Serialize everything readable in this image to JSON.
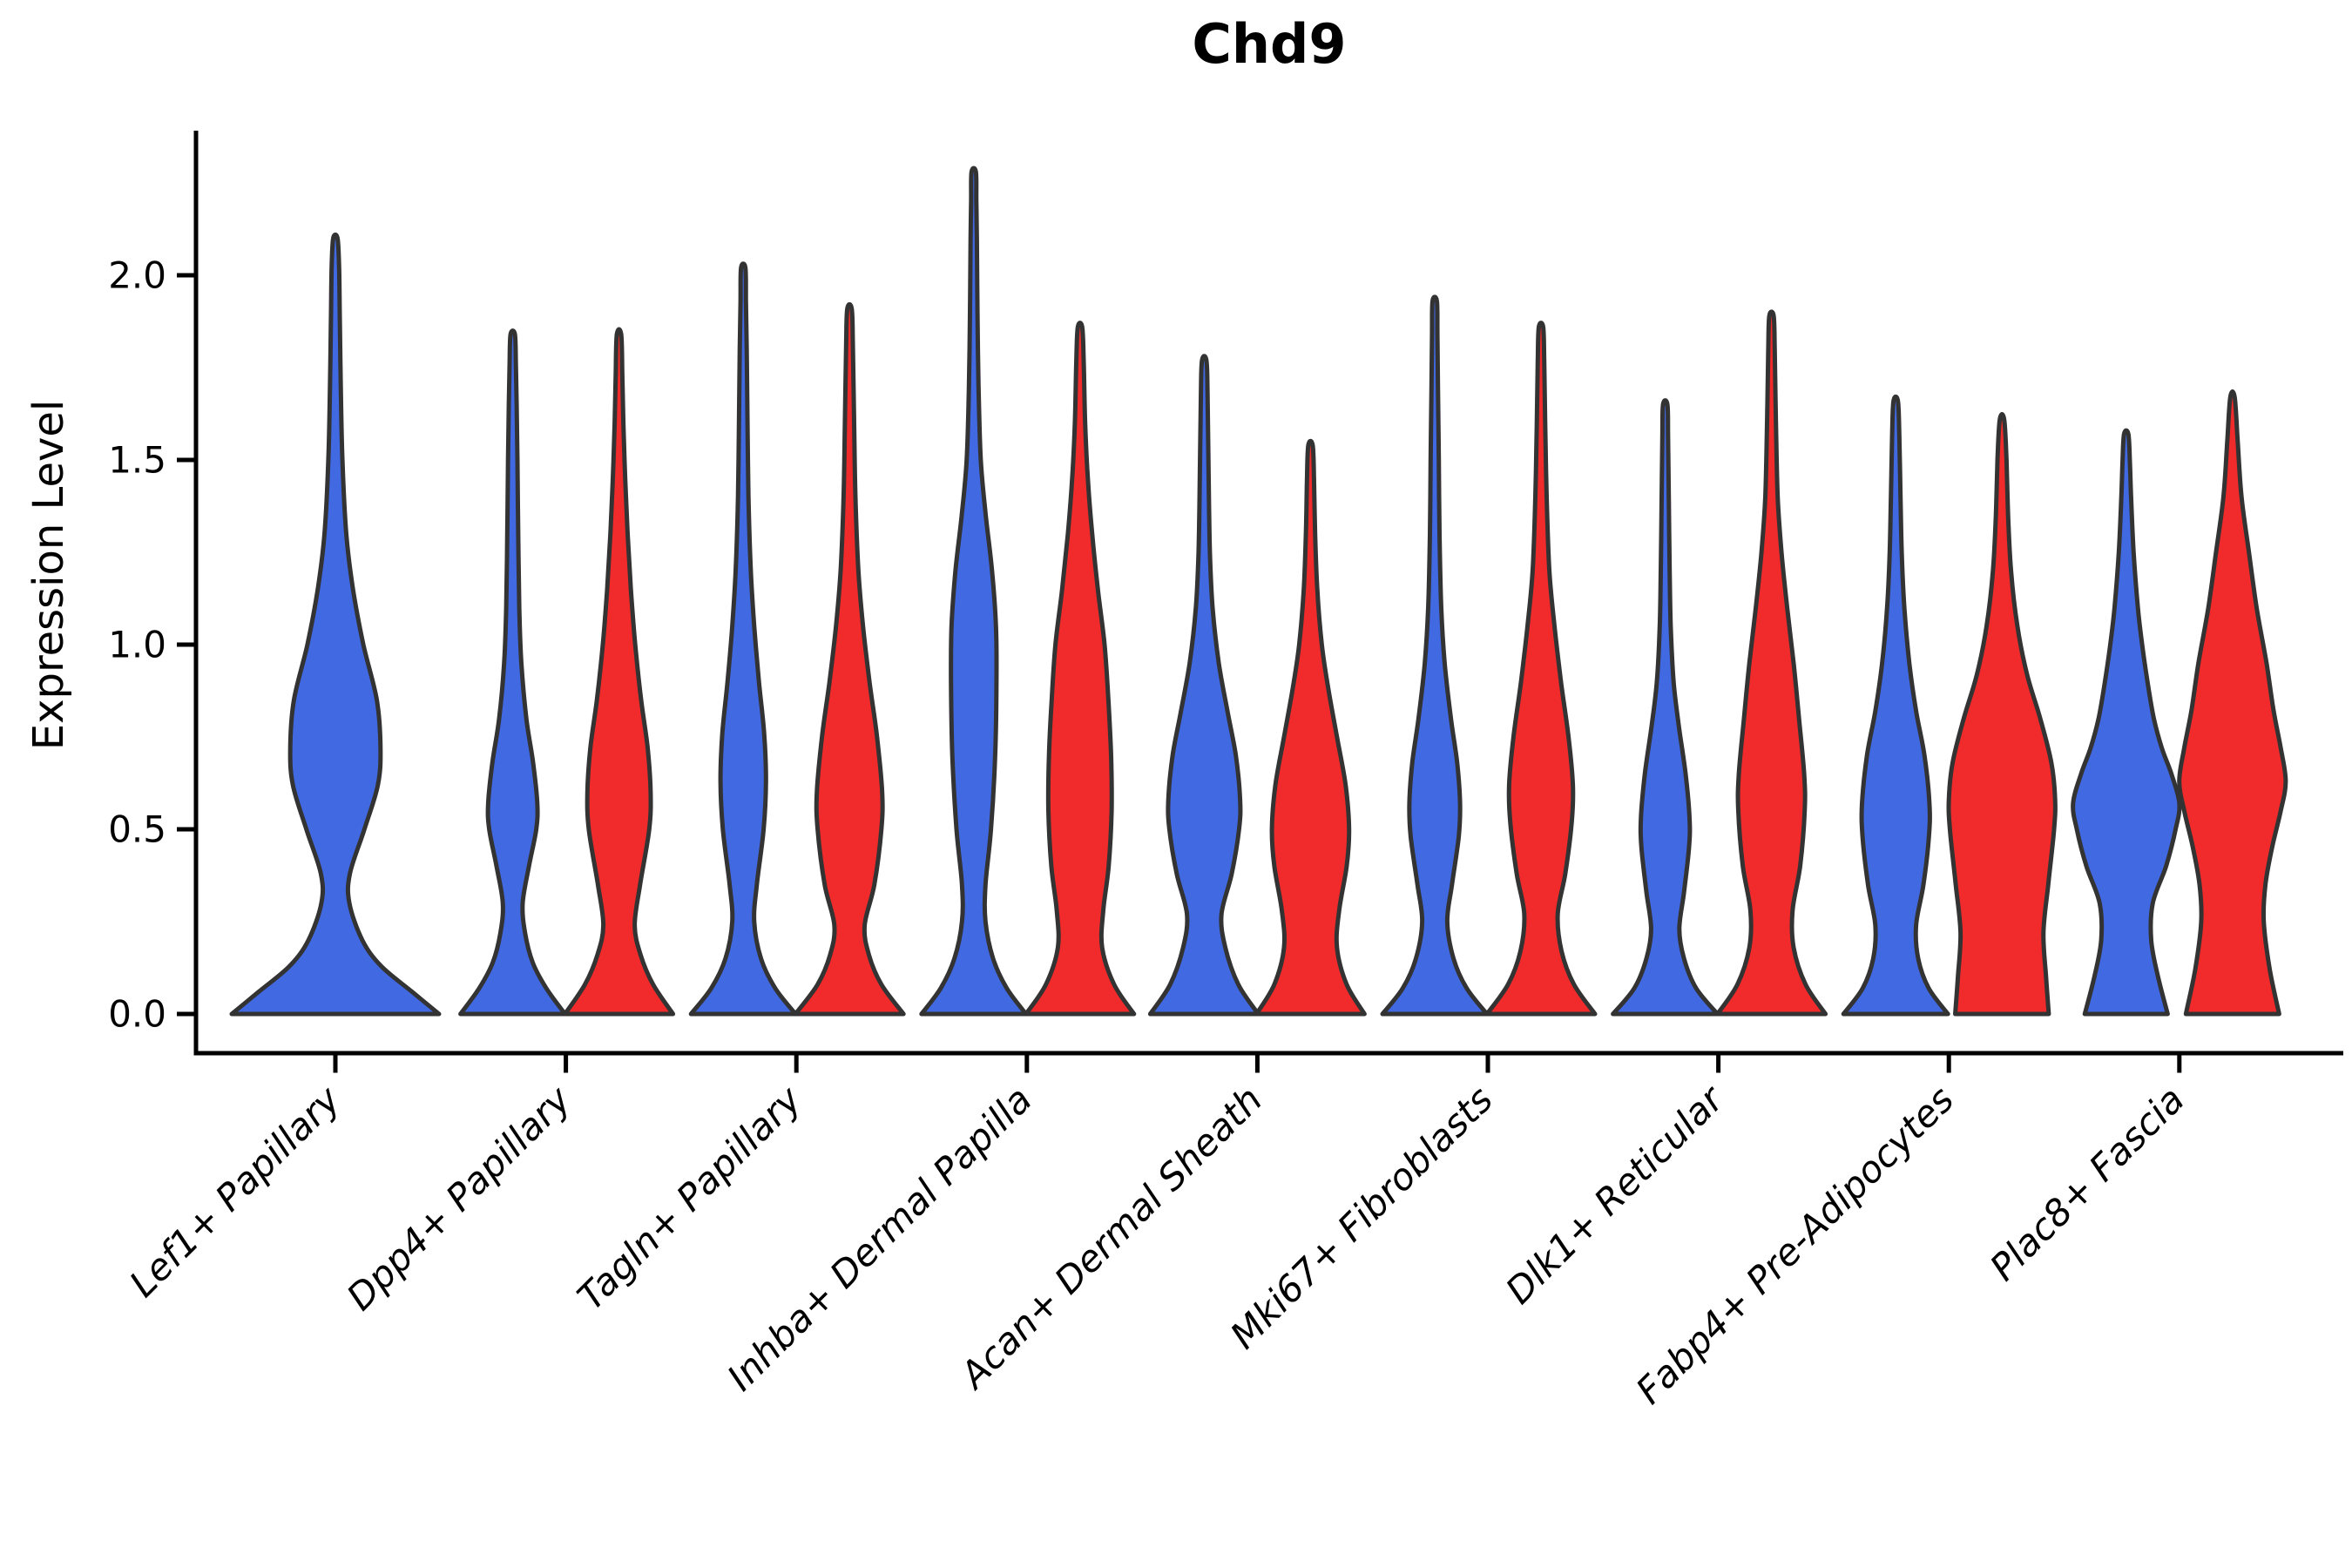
{
  "title": "Chd9",
  "ylabel": "Expression Level",
  "chart_data": {
    "type": "violin",
    "title": "Chd9",
    "xlabel": "",
    "ylabel": "Expression Level",
    "legend": "none",
    "grid": false,
    "ylim": [
      -0.11,
      2.38
    ],
    "yticks": [
      {
        "label": "0.0",
        "value": 0.0
      },
      {
        "label": "0.5",
        "value": 0.5
      },
      {
        "label": "1.0",
        "value": 1.0
      },
      {
        "label": "1.5",
        "value": 1.5
      },
      {
        "label": "2.0",
        "value": 2.0
      }
    ],
    "categories": [
      "Lef1+ Papillary",
      "Dpp4+ Papillary",
      "Tagln+ Papillary",
      "Inhba+ Dermal Papilla",
      "Acan+ Dermal Sheath",
      "Mki67+ Fibroblasts",
      "Dlk1+ Reticular",
      "Fabp4+ Pre-Adipocytes",
      "Plac8+ Fascia"
    ],
    "xtick_label_style": {
      "rotation_deg": 45,
      "italic": true
    },
    "colors": {
      "blue": "#4169E1",
      "red": "#F12B2B",
      "edge": "#333333",
      "axis": "#000000"
    },
    "split": [
      "blue",
      "red"
    ],
    "violins": [
      {
        "category": "Lef1+ Papillary",
        "group": 0,
        "side": "center",
        "color": "blue",
        "tip": 2.1,
        "halfwidth": 119,
        "profile": [
          [
            0,
            1.0
          ],
          [
            0.06,
            0.74
          ],
          [
            0.13,
            0.44
          ],
          [
            0.2,
            0.26
          ],
          [
            0.3,
            0.135
          ],
          [
            0.38,
            0.14
          ],
          [
            0.5,
            0.28
          ],
          [
            0.62,
            0.41
          ],
          [
            0.72,
            0.435
          ],
          [
            0.85,
            0.4
          ],
          [
            1.0,
            0.27
          ],
          [
            1.15,
            0.17
          ],
          [
            1.3,
            0.105
          ],
          [
            1.5,
            0.068
          ],
          [
            1.7,
            0.052
          ],
          [
            1.9,
            0.042
          ],
          [
            2.02,
            0.036
          ]
        ]
      },
      {
        "category": "Dpp4+ Papillary",
        "group": 1,
        "side": "left",
        "color": "blue",
        "tip": 1.84,
        "halfwidth": 60,
        "profile": [
          [
            0,
            1.0
          ],
          [
            0.07,
            0.64
          ],
          [
            0.14,
            0.38
          ],
          [
            0.22,
            0.235
          ],
          [
            0.3,
            0.19
          ],
          [
            0.4,
            0.31
          ],
          [
            0.5,
            0.45
          ],
          [
            0.57,
            0.47
          ],
          [
            0.68,
            0.39
          ],
          [
            0.8,
            0.26
          ],
          [
            0.95,
            0.165
          ],
          [
            1.1,
            0.125
          ],
          [
            1.3,
            0.105
          ],
          [
            1.5,
            0.09
          ],
          [
            1.65,
            0.075
          ],
          [
            1.76,
            0.06
          ]
        ]
      },
      {
        "category": "Dpp4+ Papillary",
        "group": 1,
        "side": "right",
        "color": "red",
        "tip": 1.84,
        "halfwidth": 62,
        "profile": [
          [
            0,
            1.0
          ],
          [
            0.08,
            0.63
          ],
          [
            0.16,
            0.4
          ],
          [
            0.24,
            0.29
          ],
          [
            0.35,
            0.39
          ],
          [
            0.5,
            0.56
          ],
          [
            0.6,
            0.585
          ],
          [
            0.72,
            0.53
          ],
          [
            0.85,
            0.41
          ],
          [
            1.0,
            0.3
          ],
          [
            1.15,
            0.22
          ],
          [
            1.3,
            0.16
          ],
          [
            1.45,
            0.115
          ],
          [
            1.6,
            0.08
          ],
          [
            1.73,
            0.062
          ]
        ]
      },
      {
        "category": "Tagln+ Papillary",
        "group": 2,
        "side": "left",
        "color": "blue",
        "tip": 2.02,
        "halfwidth": 60,
        "profile": [
          [
            0,
            1.0
          ],
          [
            0.07,
            0.61
          ],
          [
            0.15,
            0.34
          ],
          [
            0.25,
            0.21
          ],
          [
            0.35,
            0.26
          ],
          [
            0.5,
            0.39
          ],
          [
            0.63,
            0.435
          ],
          [
            0.76,
            0.4
          ],
          [
            0.9,
            0.3
          ],
          [
            1.05,
            0.21
          ],
          [
            1.2,
            0.145
          ],
          [
            1.4,
            0.1
          ],
          [
            1.6,
            0.082
          ],
          [
            1.8,
            0.066
          ],
          [
            1.93,
            0.052
          ]
        ]
      },
      {
        "category": "Tagln+ Papillary",
        "group": 2,
        "side": "right",
        "color": "red",
        "tip": 1.91,
        "halfwidth": 62,
        "profile": [
          [
            0,
            1.0
          ],
          [
            0.08,
            0.59
          ],
          [
            0.16,
            0.36
          ],
          [
            0.24,
            0.28
          ],
          [
            0.35,
            0.46
          ],
          [
            0.5,
            0.59
          ],
          [
            0.6,
            0.605
          ],
          [
            0.75,
            0.51
          ],
          [
            0.9,
            0.37
          ],
          [
            1.05,
            0.25
          ],
          [
            1.2,
            0.165
          ],
          [
            1.4,
            0.11
          ],
          [
            1.6,
            0.085
          ],
          [
            1.82,
            0.062
          ]
        ]
      },
      {
        "category": "Inhba+ Dermal Papilla",
        "group": 3,
        "side": "left",
        "color": "blue",
        "tip": 2.28,
        "halfwidth": 60,
        "profile": [
          [
            0,
            1.0
          ],
          [
            0.07,
            0.63
          ],
          [
            0.15,
            0.37
          ],
          [
            0.25,
            0.225
          ],
          [
            0.35,
            0.225
          ],
          [
            0.5,
            0.33
          ],
          [
            0.7,
            0.41
          ],
          [
            0.9,
            0.435
          ],
          [
            1.05,
            0.425
          ],
          [
            1.2,
            0.35
          ],
          [
            1.35,
            0.23
          ],
          [
            1.5,
            0.135
          ],
          [
            1.7,
            0.092
          ],
          [
            1.9,
            0.072
          ],
          [
            2.1,
            0.06
          ],
          [
            2.2,
            0.05
          ]
        ]
      },
      {
        "category": "Inhba+ Dermal Papilla",
        "group": 3,
        "side": "right",
        "color": "red",
        "tip": 1.86,
        "halfwidth": 62,
        "profile": [
          [
            0,
            1.0
          ],
          [
            0.08,
            0.63
          ],
          [
            0.18,
            0.41
          ],
          [
            0.28,
            0.43
          ],
          [
            0.4,
            0.53
          ],
          [
            0.55,
            0.585
          ],
          [
            0.7,
            0.575
          ],
          [
            0.85,
            0.525
          ],
          [
            1.0,
            0.455
          ],
          [
            1.15,
            0.33
          ],
          [
            1.3,
            0.225
          ],
          [
            1.45,
            0.145
          ],
          [
            1.6,
            0.095
          ],
          [
            1.77,
            0.068
          ]
        ]
      },
      {
        "category": "Acan+ Dermal Sheath",
        "group": 4,
        "side": "left",
        "color": "blue",
        "tip": 1.77,
        "halfwidth": 62,
        "profile": [
          [
            0,
            1.0
          ],
          [
            0.08,
            0.63
          ],
          [
            0.18,
            0.39
          ],
          [
            0.27,
            0.32
          ],
          [
            0.38,
            0.51
          ],
          [
            0.5,
            0.645
          ],
          [
            0.58,
            0.665
          ],
          [
            0.7,
            0.585
          ],
          [
            0.82,
            0.43
          ],
          [
            0.95,
            0.27
          ],
          [
            1.1,
            0.155
          ],
          [
            1.25,
            0.105
          ],
          [
            1.45,
            0.082
          ],
          [
            1.68,
            0.062
          ]
        ]
      },
      {
        "category": "Acan+ Dermal Sheath",
        "group": 4,
        "side": "right",
        "color": "red",
        "tip": 1.54,
        "halfwidth": 62,
        "profile": [
          [
            0,
            1.0
          ],
          [
            0.08,
            0.67
          ],
          [
            0.18,
            0.49
          ],
          [
            0.28,
            0.53
          ],
          [
            0.4,
            0.67
          ],
          [
            0.5,
            0.715
          ],
          [
            0.62,
            0.65
          ],
          [
            0.75,
            0.49
          ],
          [
            0.88,
            0.33
          ],
          [
            1.0,
            0.21
          ],
          [
            1.15,
            0.125
          ],
          [
            1.3,
            0.085
          ],
          [
            1.45,
            0.065
          ]
        ]
      },
      {
        "category": "Mki67+ Fibroblasts",
        "group": 5,
        "side": "left",
        "color": "blue",
        "tip": 1.93,
        "halfwidth": 60,
        "profile": [
          [
            0,
            1.0
          ],
          [
            0.07,
            0.61
          ],
          [
            0.15,
            0.36
          ],
          [
            0.25,
            0.24
          ],
          [
            0.35,
            0.33
          ],
          [
            0.48,
            0.46
          ],
          [
            0.57,
            0.485
          ],
          [
            0.68,
            0.43
          ],
          [
            0.8,
            0.31
          ],
          [
            0.95,
            0.19
          ],
          [
            1.1,
            0.125
          ],
          [
            1.3,
            0.092
          ],
          [
            1.5,
            0.078
          ],
          [
            1.7,
            0.062
          ],
          [
            1.84,
            0.052
          ]
        ]
      },
      {
        "category": "Mki67+ Fibroblasts",
        "group": 5,
        "side": "right",
        "color": "red",
        "tip": 1.86,
        "halfwidth": 62,
        "profile": [
          [
            0,
            1.0
          ],
          [
            0.08,
            0.61
          ],
          [
            0.17,
            0.38
          ],
          [
            0.27,
            0.31
          ],
          [
            0.38,
            0.45
          ],
          [
            0.52,
            0.57
          ],
          [
            0.62,
            0.59
          ],
          [
            0.75,
            0.51
          ],
          [
            0.9,
            0.37
          ],
          [
            1.05,
            0.25
          ],
          [
            1.2,
            0.155
          ],
          [
            1.4,
            0.105
          ],
          [
            1.6,
            0.078
          ],
          [
            1.77,
            0.06
          ]
        ]
      },
      {
        "category": "Dlk1+ Reticular",
        "group": 6,
        "side": "left",
        "color": "blue",
        "tip": 1.65,
        "halfwidth": 60,
        "profile": [
          [
            0,
            1.0
          ],
          [
            0.07,
            0.59
          ],
          [
            0.15,
            0.36
          ],
          [
            0.23,
            0.27
          ],
          [
            0.33,
            0.36
          ],
          [
            0.45,
            0.455
          ],
          [
            0.53,
            0.465
          ],
          [
            0.65,
            0.39
          ],
          [
            0.78,
            0.26
          ],
          [
            0.9,
            0.16
          ],
          [
            1.05,
            0.105
          ],
          [
            1.2,
            0.085
          ],
          [
            1.4,
            0.068
          ],
          [
            1.56,
            0.055
          ]
        ]
      },
      {
        "category": "Dlk1+ Reticular",
        "group": 6,
        "side": "right",
        "color": "red",
        "tip": 1.89,
        "halfwidth": 62,
        "profile": [
          [
            0,
            1.0
          ],
          [
            0.08,
            0.63
          ],
          [
            0.18,
            0.41
          ],
          [
            0.28,
            0.39
          ],
          [
            0.4,
            0.53
          ],
          [
            0.55,
            0.615
          ],
          [
            0.65,
            0.605
          ],
          [
            0.8,
            0.51
          ],
          [
            0.95,
            0.41
          ],
          [
            1.1,
            0.29
          ],
          [
            1.25,
            0.185
          ],
          [
            1.4,
            0.115
          ],
          [
            1.6,
            0.082
          ],
          [
            1.8,
            0.06
          ]
        ]
      },
      {
        "category": "Fabp4+ Pre-Adipocytes",
        "group": 7,
        "side": "left",
        "color": "blue",
        "tip": 1.66,
        "halfwidth": 60,
        "profile": [
          [
            0,
            1.0
          ],
          [
            0.07,
            0.63
          ],
          [
            0.15,
            0.43
          ],
          [
            0.24,
            0.39
          ],
          [
            0.35,
            0.53
          ],
          [
            0.48,
            0.635
          ],
          [
            0.57,
            0.645
          ],
          [
            0.7,
            0.55
          ],
          [
            0.82,
            0.39
          ],
          [
            0.95,
            0.26
          ],
          [
            1.1,
            0.165
          ],
          [
            1.25,
            0.115
          ],
          [
            1.4,
            0.092
          ],
          [
            1.57,
            0.068
          ]
        ]
      },
      {
        "category": "Fabp4+ Pre-Adipocytes",
        "group": 7,
        "side": "right",
        "color": "red",
        "tip": 1.61,
        "halfwidth": 61,
        "profile": [
          [
            0,
            0.88
          ],
          [
            0.1,
            0.83
          ],
          [
            0.22,
            0.78
          ],
          [
            0.35,
            0.87
          ],
          [
            0.5,
            0.98
          ],
          [
            0.58,
            1.0
          ],
          [
            0.68,
            0.93
          ],
          [
            0.8,
            0.72
          ],
          [
            0.92,
            0.47
          ],
          [
            1.05,
            0.29
          ],
          [
            1.2,
            0.17
          ],
          [
            1.35,
            0.115
          ],
          [
            1.5,
            0.085
          ]
        ]
      },
      {
        "category": "Plac8+ Fascia",
        "group": 8,
        "side": "left",
        "color": "blue",
        "tip": 1.57,
        "halfwidth": 61,
        "profile": [
          [
            0,
            0.78
          ],
          [
            0.1,
            0.6
          ],
          [
            0.2,
            0.47
          ],
          [
            0.3,
            0.5
          ],
          [
            0.4,
            0.75
          ],
          [
            0.5,
            0.93
          ],
          [
            0.57,
            1.0
          ],
          [
            0.65,
            0.85
          ],
          [
            0.72,
            0.67
          ],
          [
            0.8,
            0.52
          ],
          [
            0.9,
            0.4
          ],
          [
            1.0,
            0.3
          ],
          [
            1.1,
            0.22
          ],
          [
            1.25,
            0.14
          ],
          [
            1.4,
            0.092
          ],
          [
            1.49,
            0.07
          ]
        ]
      },
      {
        "category": "Plac8+ Fascia",
        "group": 8,
        "side": "right",
        "color": "red",
        "tip": 1.67,
        "halfwidth": 63,
        "profile": [
          [
            0,
            0.85
          ],
          [
            0.12,
            0.68
          ],
          [
            0.25,
            0.57
          ],
          [
            0.35,
            0.6
          ],
          [
            0.45,
            0.72
          ],
          [
            0.55,
            0.88
          ],
          [
            0.63,
            0.97
          ],
          [
            0.72,
            0.88
          ],
          [
            0.82,
            0.75
          ],
          [
            0.95,
            0.62
          ],
          [
            1.1,
            0.44
          ],
          [
            1.25,
            0.3
          ],
          [
            1.4,
            0.165
          ],
          [
            1.55,
            0.095
          ]
        ]
      }
    ]
  }
}
